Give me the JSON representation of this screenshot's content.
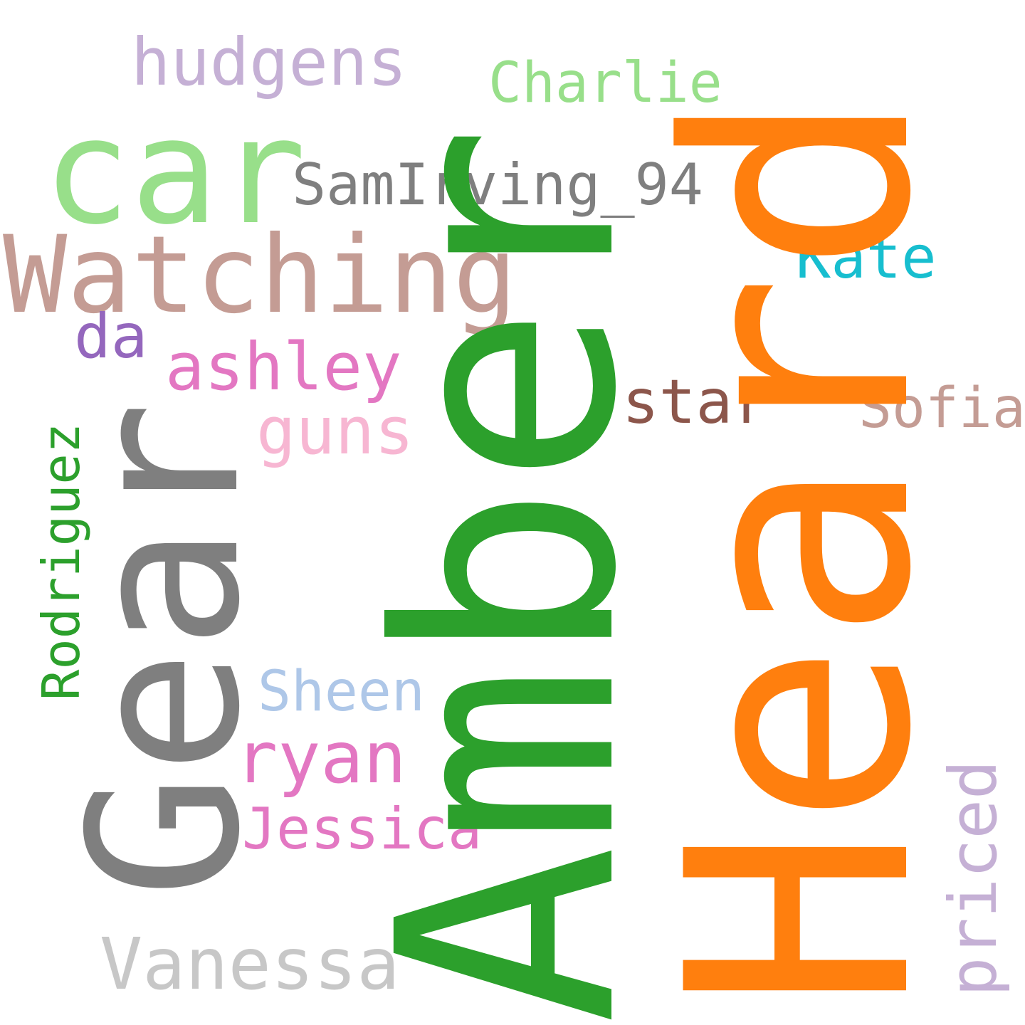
{
  "words": {
    "amber": {
      "text": "Amber",
      "color": "#2ca02c"
    },
    "heard": {
      "text": "Heard",
      "color": "#ff7f0e"
    },
    "gear": {
      "text": "Gear",
      "color": "#7f7f7f"
    },
    "car": {
      "text": "car",
      "color": "#98df8a"
    },
    "watching": {
      "text": "Watching",
      "color": "#c49c94"
    },
    "hudgens": {
      "text": "hudgens",
      "color": "#c5b0d5"
    },
    "charlie": {
      "text": "Charlie",
      "color": "#98df8a"
    },
    "samirving": {
      "text": "SamIrving_94",
      "color": "#7f7f7f"
    },
    "kate": {
      "text": "Kate",
      "color": "#17becf"
    },
    "da": {
      "text": "da",
      "color": "#9467bd"
    },
    "ashley": {
      "text": "ashley",
      "color": "#e377c2"
    },
    "star": {
      "text": "star",
      "color": "#8c564b"
    },
    "sofia": {
      "text": "Sofia",
      "color": "#c49c94"
    },
    "guns": {
      "text": "guns",
      "color": "#f7b6d2"
    },
    "rodriguez": {
      "text": "Rodriguez",
      "color": "#2ca02c"
    },
    "sheen": {
      "text": "Sheen",
      "color": "#aec7e8"
    },
    "ryan": {
      "text": "ryan",
      "color": "#e377c2"
    },
    "jessica": {
      "text": "Jessica",
      "color": "#e377c2"
    },
    "vanessa": {
      "text": "Vanessa",
      "color": "#c7c7c7"
    },
    "priced": {
      "text": "priced",
      "color": "#c5b0d5"
    }
  }
}
